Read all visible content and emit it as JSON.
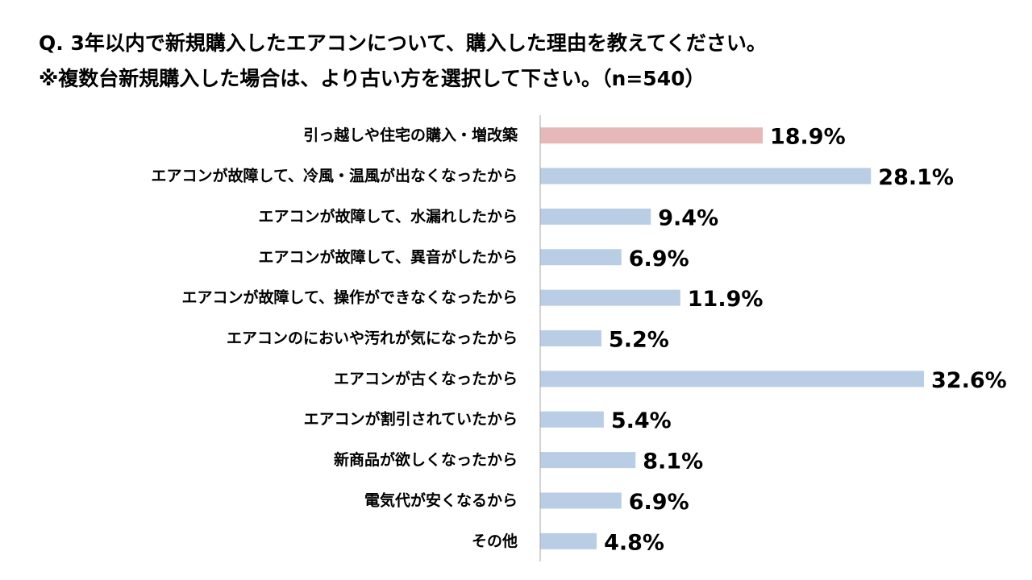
{
  "title": {
    "line1": "Q. 3年以内で新規購入したエアコンについて、購入した理由を教えてください。",
    "line2": "※複数台新規購入した場合は、より古い方を選択して下さい。（n=540）"
  },
  "chart_data": {
    "type": "bar",
    "orientation": "horizontal",
    "title": "Q. 3年以内で新規購入したエアコンについて、購入した理由を教えてください。 ※複数台新規購入した場合は、より古い方を選択して下さい。（n=540）",
    "unit": "%",
    "categories": [
      "引っ越しや住宅の購入・増改築",
      "エアコンが故障して、冷風・温風が出なくなったから",
      "エアコンが故障して、水漏れしたから",
      "エアコンが故障して、異音がしたから",
      "エアコンが故障して、操作ができなくなったから",
      "エアコンのにおいや汚れが気になったから",
      "エアコンが古くなったから",
      "エアコンが割引されていたから",
      "新商品が欲しくなったから",
      "電気代が安くなるから",
      "その他"
    ],
    "values": [
      18.9,
      28.1,
      9.4,
      6.9,
      11.9,
      5.2,
      32.6,
      5.4,
      8.1,
      6.9,
      4.8
    ],
    "value_labels": [
      "18.9%",
      "28.1%",
      "9.4%",
      "6.9%",
      "11.9%",
      "5.2%",
      "32.6%",
      "5.4%",
      "8.1%",
      "6.9%",
      "4.8%"
    ],
    "highlight_index": 0,
    "colors": {
      "highlight": "#E6B9B8",
      "default": "#B9CDE5",
      "axis": "#A6A6A6"
    },
    "xlim": [
      0,
      34
    ],
    "grid": false
  }
}
